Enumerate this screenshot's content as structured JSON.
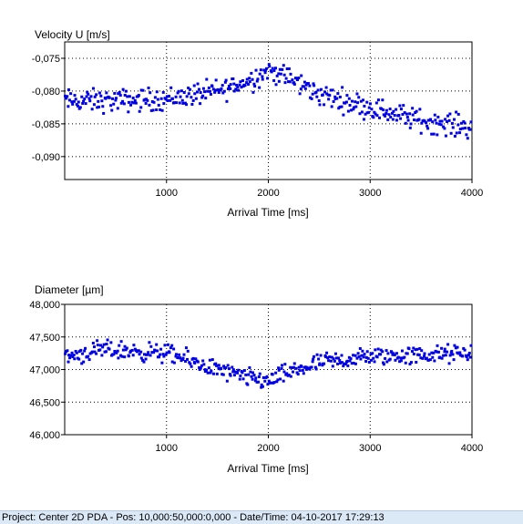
{
  "chart_data": [
    {
      "type": "scatter",
      "title": "Velocity U [m/s]",
      "xlabel": "Arrival Time [ms]",
      "ylabel": "Velocity U [m/s]",
      "xlim": [
        0,
        4000
      ],
      "ylim": [
        -0.0935,
        -0.0725
      ],
      "xticks": [
        1000,
        2000,
        3000,
        4000
      ],
      "xtick_labels": [
        "1000",
        "2000",
        "3000",
        "4000"
      ],
      "yticks": [
        -0.075,
        -0.08,
        -0.085,
        -0.09
      ],
      "ytick_labels": [
        "-0,075",
        "-0,080",
        "-0,085",
        "-0,090"
      ],
      "grid": true,
      "marker_color": "#0000e6",
      "trend": {
        "x": [
          0,
          500,
          1000,
          1500,
          1800,
          2000,
          2200,
          2500,
          3000,
          3500,
          4000
        ],
        "y": [
          -0.0815,
          -0.0815,
          -0.0812,
          -0.08,
          -0.0785,
          -0.0768,
          -0.078,
          -0.0805,
          -0.0825,
          -0.0845,
          -0.0855
        ]
      },
      "noise": 0.0017,
      "n_points": 420
    },
    {
      "type": "scatter",
      "title": "Diameter [µm]",
      "xlabel": "Arrival Time [ms]",
      "ylabel": "Diameter [µm]",
      "xlim": [
        0,
        4000
      ],
      "ylim": [
        46.0,
        48.0
      ],
      "xticks": [
        1000,
        2000,
        3000,
        4000
      ],
      "xtick_labels": [
        "1000",
        "2000",
        "3000",
        "4000"
      ],
      "yticks": [
        48.0,
        47.5,
        47.0,
        46.5,
        46.0
      ],
      "ytick_labels": [
        "48,000",
        "47,500",
        "47,000",
        "46,500",
        "46,000"
      ],
      "grid": true,
      "marker_color": "#0000e6",
      "trend": {
        "x": [
          0,
          400,
          1000,
          1400,
          1700,
          2000,
          2200,
          2500,
          3000,
          3500,
          4000
        ],
        "y": [
          47.2,
          47.3,
          47.25,
          47.05,
          46.9,
          46.82,
          46.95,
          47.1,
          47.2,
          47.22,
          47.25
        ]
      },
      "noise": 0.14,
      "n_points": 420
    }
  ],
  "status_bar": {
    "text": "Project: Center  2D  PDA - Pos: 10,000:50,000:0,000 - Date/Time: 04-10-2017 17:29:13"
  }
}
